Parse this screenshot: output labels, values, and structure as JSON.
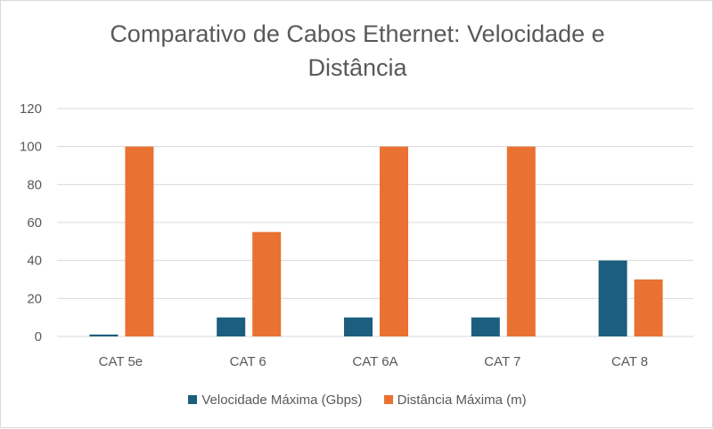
{
  "chart_data": {
    "type": "bar",
    "title": "Comparativo de Cabos Ethernet: Velocidade e Distância",
    "title_lines": [
      "Comparativo de Cabos Ethernet: Velocidade e",
      "Distância"
    ],
    "categories": [
      "CAT 5e",
      "CAT 6",
      "CAT 6A",
      "CAT 7",
      "CAT 8"
    ],
    "series": [
      {
        "name": "Velocidade Máxima (Gbps)",
        "values": [
          1,
          10,
          10,
          10,
          40
        ],
        "color": "#1b5e7e"
      },
      {
        "name": "Distância Máxima (m)",
        "values": [
          100,
          55,
          100,
          100,
          30
        ],
        "color": "#e97132"
      }
    ],
    "ylim": [
      0,
      120
    ],
    "yticks": [
      "0",
      "20",
      "40",
      "60",
      "80",
      "100",
      "120"
    ],
    "grid": true,
    "legend": "bottom"
  }
}
